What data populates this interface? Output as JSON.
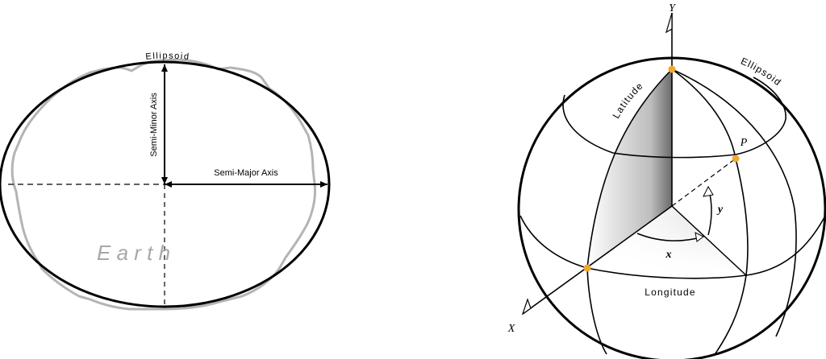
{
  "left": {
    "ellipsoid_label": "Ellipsoid",
    "minor_axis_label": "Semi-Minor Axis",
    "major_axis_label": "Semi-Major Axis",
    "earth_label": "E a r t h"
  },
  "right": {
    "y_label": "Y",
    "x_label": "X",
    "ellipsoid_label": "Ellipsoid",
    "latitude_label": "Latitude",
    "longitude_label": "Longitude",
    "point_label": "P",
    "angle_x_label": "x",
    "angle_y_label": "y"
  },
  "colors": {
    "point": "#f0a830",
    "earth_outline": "#b4b4b4"
  }
}
